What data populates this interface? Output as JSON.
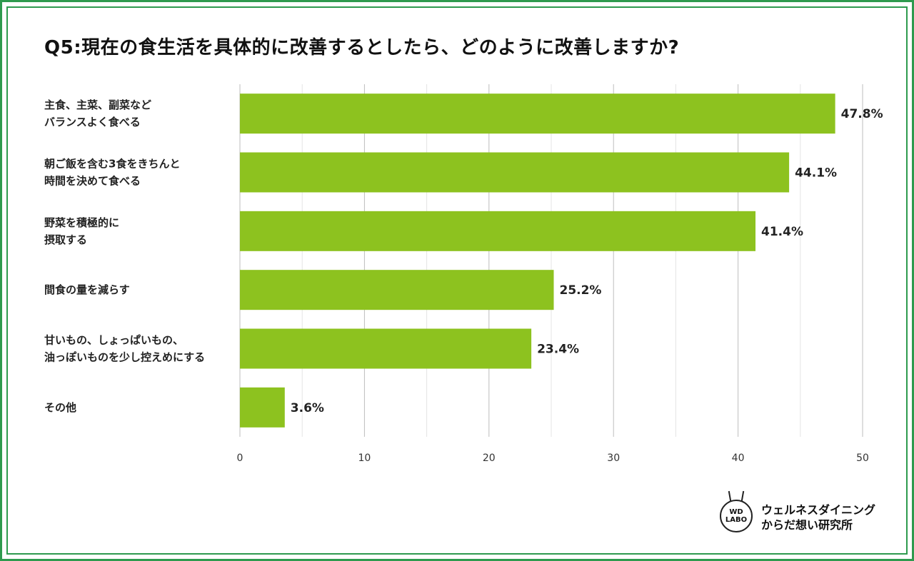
{
  "title": "Q5:現在の食生活を具体的に改善するとしたら、どのように改善しますか?",
  "chart_data": {
    "type": "bar",
    "orientation": "horizontal",
    "categories": [
      [
        "主食、主菜、副菜など",
        "バランスよく食べる"
      ],
      [
        "朝ご飯を含む3食をきちんと",
        "時間を決めて食べる"
      ],
      [
        "野菜を積極的に",
        "摂取する"
      ],
      [
        "間食の量を減らす"
      ],
      [
        "甘いもの、しょっぱいもの、",
        "油っぽいものを少し控えめにする"
      ],
      [
        "その他"
      ]
    ],
    "values": [
      47.8,
      44.1,
      41.4,
      25.2,
      23.4,
      3.6
    ],
    "value_labels": [
      "47.8%",
      "44.1%",
      "41.4%",
      "25.2%",
      "23.4%",
      "3.6%"
    ],
    "xlim": [
      0,
      50
    ],
    "xticks": [
      0,
      10,
      20,
      30,
      40,
      50
    ],
    "grid": true,
    "bar_color": "#8dc21f"
  },
  "logo": {
    "badge_line1": "WD",
    "badge_line2": "LABO",
    "line1": "ウェルネスダイニング",
    "line2": "からだ想い研究所"
  },
  "colors": {
    "frame": "#2e9a4e",
    "bar": "#8dc21f"
  }
}
